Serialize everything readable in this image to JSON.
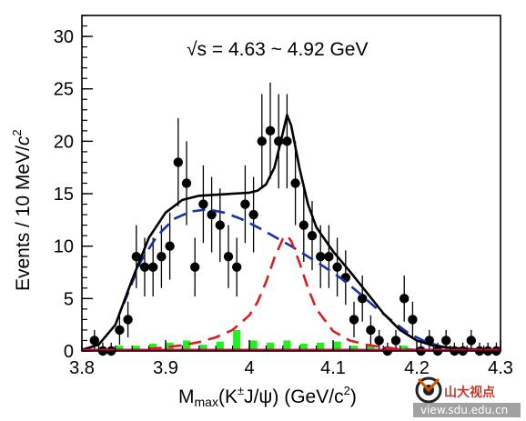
{
  "chart_data": {
    "type": "scatter",
    "title": "",
    "annotation": {
      "sqrt": "√",
      "text": "s = 4.63 ~ 4.92 GeV"
    },
    "xlabel": {
      "main": "M",
      "sub": "max",
      "mid1": "(K",
      "sup1": "±",
      "mid2": "J/ψ) (GeV/c",
      "sup2": "2",
      "end": ")"
    },
    "ylabel": {
      "main": "Events / 10 MeV/",
      "italic": "c",
      "sup": "2"
    },
    "xlim": [
      3.8,
      4.3
    ],
    "ylim": [
      0,
      32
    ],
    "xticks": [
      3.8,
      3.9,
      4.0,
      4.1,
      4.2,
      4.3
    ],
    "xtick_labels": [
      "3.8",
      "3.9",
      "4",
      "4.1",
      "4.2",
      "4.3"
    ],
    "yticks": [
      0,
      5,
      10,
      15,
      20,
      25,
      30
    ],
    "ytick_labels": [
      "0",
      "5",
      "10",
      "15",
      "20",
      "25",
      "30"
    ],
    "grid": false,
    "series": [
      {
        "kind": "data",
        "color": "#000000",
        "x": [
          3.815,
          3.825,
          3.835,
          3.845,
          3.855,
          3.865,
          3.875,
          3.885,
          3.895,
          3.905,
          3.915,
          3.925,
          3.935,
          3.945,
          3.955,
          3.965,
          3.975,
          3.985,
          3.995,
          4.005,
          4.015,
          4.025,
          4.035,
          4.045,
          4.055,
          4.065,
          4.075,
          4.085,
          4.095,
          4.105,
          4.115,
          4.125,
          4.135,
          4.145,
          4.155,
          4.165,
          4.175,
          4.185,
          4.195,
          4.205,
          4.215,
          4.225,
          4.235,
          4.245,
          4.255,
          4.265,
          4.275,
          4.285,
          4.295
        ],
        "y": [
          1,
          0,
          0,
          2,
          3,
          9,
          8,
          8,
          9,
          10,
          18,
          16,
          8,
          14,
          13,
          12,
          9,
          8,
          14,
          13,
          20,
          21,
          20,
          20,
          16,
          12,
          11,
          9,
          9,
          8,
          7,
          3,
          5,
          2,
          1,
          0,
          1,
          5,
          3,
          0,
          1,
          0,
          1,
          0,
          0,
          1,
          0,
          0,
          0
        ],
        "yerr": [
          1,
          0.8,
          0.8,
          1.4,
          1.7,
          3,
          2.8,
          2.8,
          3,
          3.2,
          4.2,
          4,
          2.8,
          3.7,
          3.6,
          3.5,
          3,
          2.8,
          3.7,
          3.6,
          4.5,
          4.6,
          4.5,
          4.5,
          4,
          3.5,
          3.3,
          3,
          3,
          2.8,
          2.6,
          1.7,
          2.2,
          1.4,
          1,
          0.8,
          1,
          2.2,
          1.7,
          0.8,
          1,
          0.8,
          1,
          0.8,
          0.8,
          1,
          0.8,
          0.8,
          0.8
        ]
      },
      {
        "kind": "total-fit",
        "color": "#000000",
        "x": [
          3.8,
          3.82,
          3.84,
          3.86,
          3.88,
          3.9,
          3.92,
          3.94,
          3.96,
          3.98,
          4.0,
          4.01,
          4.02,
          4.03,
          4.04,
          4.045,
          4.05,
          4.06,
          4.07,
          4.08,
          4.1,
          4.12,
          4.14,
          4.16,
          4.18,
          4.2,
          4.22,
          4.24,
          4.26,
          4.28,
          4.3
        ],
        "y": [
          0.1,
          0.6,
          2.5,
          6.8,
          10.8,
          13.2,
          14.4,
          14.8,
          14.9,
          15.0,
          15.1,
          15.3,
          15.9,
          17.5,
          20.8,
          22.5,
          21.5,
          17.4,
          14.0,
          11.8,
          9.5,
          7.6,
          5.6,
          3.6,
          2.0,
          1.0,
          0.5,
          0.3,
          0.2,
          0.1,
          0.1
        ]
      },
      {
        "kind": "background",
        "color": "#1530a8",
        "x": [
          3.85,
          3.87,
          3.89,
          3.91,
          3.93,
          3.95,
          3.97,
          3.99,
          4.01,
          4.03,
          4.05,
          4.07,
          4.09,
          4.11,
          4.13,
          4.15,
          4.17,
          4.19,
          4.21,
          4.23,
          4.25,
          4.27
        ],
        "y": [
          4.5,
          8.5,
          11.0,
          12.6,
          13.3,
          13.5,
          13.2,
          12.6,
          11.8,
          10.9,
          10.0,
          9.0,
          8.0,
          6.9,
          5.6,
          4.2,
          2.9,
          1.7,
          0.9,
          0.4,
          0.2,
          0.1
        ]
      },
      {
        "kind": "signal",
        "color": "#d81e1e",
        "x": [
          3.88,
          3.9,
          3.92,
          3.94,
          3.96,
          3.98,
          4.0,
          4.01,
          4.02,
          4.03,
          4.04,
          4.045,
          4.05,
          4.06,
          4.07,
          4.08,
          4.1,
          4.12,
          4.14,
          4.16,
          4.18,
          4.2
        ],
        "y": [
          0.2,
          0.35,
          0.55,
          0.85,
          1.3,
          2.0,
          3.4,
          4.7,
          6.6,
          8.9,
          10.7,
          11.0,
          10.5,
          8.4,
          6.0,
          4.0,
          1.9,
          1.0,
          0.6,
          0.35,
          0.2,
          0.1
        ]
      },
      {
        "kind": "sideband",
        "color": "#22ee22",
        "x": [
          3.805,
          3.825,
          3.845,
          3.865,
          3.885,
          3.905,
          3.925,
          3.945,
          3.965,
          3.985,
          4.005,
          4.025,
          4.045,
          4.065,
          4.085,
          4.105,
          4.125,
          4.145,
          4.165,
          4.185,
          4.205,
          4.225,
          4.245,
          4.265,
          4.285
        ],
        "y": [
          0.3,
          0.4,
          0.5,
          0.5,
          0.7,
          0.8,
          1.0,
          0.6,
          0.9,
          2.0,
          1.0,
          0.8,
          1.0,
          0.7,
          0.8,
          0.9,
          0.5,
          0.6,
          0.4,
          0.5,
          0.3,
          0.3,
          0.2,
          0.2,
          0.1
        ]
      }
    ]
  },
  "watermark": {
    "text": "山大视点",
    "url": "view.sdu.edu.cn"
  }
}
